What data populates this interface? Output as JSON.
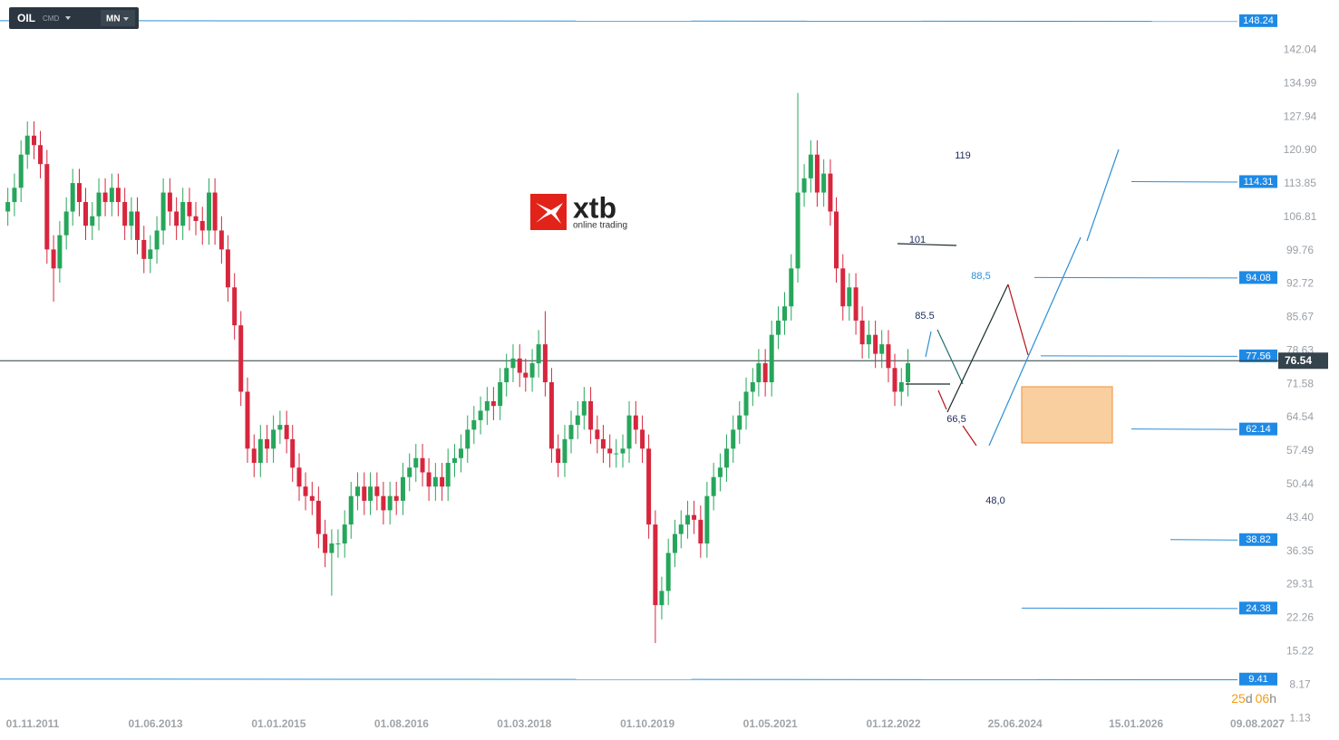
{
  "chart_data": {
    "type": "candlestick",
    "symbol": "OIL",
    "kind": "CMD",
    "interval": "MN",
    "logo": "xtb",
    "logo_sub": "online trading",
    "up_color": "#26a65b",
    "down_color": "#d7263d",
    "level_color": "#2b8fd6",
    "ylim": [
      0,
      152.6
    ],
    "yticks": [
      142.04,
      134.99,
      127.94,
      {
        "value": 120.9,
        "label": "120.90"
      },
      113.85,
      106.81,
      99.76,
      92.72,
      85.67,
      78.63,
      71.58,
      64.54,
      57.49,
      50.44,
      {
        "value": 43.4,
        "label": "43.40"
      },
      36.35,
      29.31,
      22.26,
      15.22,
      8.17,
      1.13
    ],
    "xticks": [
      "01.11.2011",
      "01.06.2013",
      "01.01.2015",
      "01.08.2016",
      "01.03.2018",
      "01.10.2019",
      "01.05.2021",
      "01.12.2022",
      "25.06.2024",
      "15.01.2026",
      "09.08.2027"
    ],
    "levels": [
      148.24,
      114.31,
      94.08,
      77.56,
      62.14,
      38.82,
      24.38,
      9.41
    ],
    "current_price": 76.54,
    "annotations": [
      "119",
      "101",
      "88,5",
      "85.5",
      "66,5",
      "48,0"
    ],
    "countdown": [
      "25",
      "d",
      "06",
      "h"
    ],
    "x": [
      "2011-07",
      "2011-08",
      "2011-09",
      "2011-10",
      "2011-11",
      "2011-12",
      "2012-01",
      "2012-02",
      "2012-03",
      "2012-04",
      "2012-05",
      "2012-06",
      "2012-07",
      "2012-08",
      "2012-09",
      "2012-10",
      "2012-11",
      "2012-12",
      "2013-01",
      "2013-02",
      "2013-03",
      "2013-04",
      "2013-05",
      "2013-06",
      "2013-07",
      "2013-08",
      "2013-09",
      "2013-10",
      "2013-11",
      "2013-12",
      "2014-01",
      "2014-02",
      "2014-03",
      "2014-04",
      "2014-05",
      "2014-06",
      "2014-07",
      "2014-08",
      "2014-09",
      "2014-10",
      "2014-11",
      "2014-12",
      "2015-01",
      "2015-02",
      "2015-03",
      "2015-04",
      "2015-05",
      "2015-06",
      "2015-07",
      "2015-08",
      "2015-09",
      "2015-10",
      "2015-11",
      "2015-12",
      "2016-01",
      "2016-02",
      "2016-03",
      "2016-04",
      "2016-05",
      "2016-06",
      "2016-07",
      "2016-08",
      "2016-09",
      "2016-10",
      "2016-11",
      "2016-12",
      "2017-01",
      "2017-02",
      "2017-03",
      "2017-04",
      "2017-05",
      "2017-06",
      "2017-07",
      "2017-08",
      "2017-09",
      "2017-10",
      "2017-11",
      "2017-12",
      "2018-01",
      "2018-02",
      "2018-03",
      "2018-04",
      "2018-05",
      "2018-06",
      "2018-07",
      "2018-08",
      "2018-09",
      "2018-10",
      "2018-11",
      "2018-12",
      "2019-01",
      "2019-02",
      "2019-03",
      "2019-04",
      "2019-05",
      "2019-06",
      "2019-07",
      "2019-08",
      "2019-09",
      "2019-10",
      "2019-11",
      "2019-12",
      "2020-01",
      "2020-02",
      "2020-03",
      "2020-04",
      "2020-05",
      "2020-06",
      "2020-07",
      "2020-08",
      "2020-09",
      "2020-10",
      "2020-11",
      "2020-12",
      "2021-01",
      "2021-02",
      "2021-03",
      "2021-04",
      "2021-05",
      "2021-06",
      "2021-07",
      "2021-08",
      "2021-09",
      "2021-10",
      "2021-11",
      "2021-12",
      "2022-01",
      "2022-02",
      "2022-03",
      "2022-04",
      "2022-05",
      "2022-06",
      "2022-07",
      "2022-08",
      "2022-09",
      "2022-10",
      "2022-11",
      "2022-12",
      "2023-01",
      "2023-02"
    ],
    "open": [
      108,
      110,
      113,
      120,
      124,
      122,
      118,
      100,
      96,
      103,
      108,
      114,
      110,
      105,
      107,
      112,
      110,
      113,
      110,
      105,
      108,
      102,
      98,
      100,
      104,
      112,
      108,
      105,
      110,
      107,
      106,
      104,
      112,
      104,
      100,
      92,
      84,
      70,
      58,
      55,
      60,
      58,
      62,
      63,
      60,
      54,
      50,
      48,
      47,
      40,
      36,
      38,
      38,
      42,
      48,
      50,
      47,
      50,
      48,
      45,
      48,
      47,
      52,
      54,
      56,
      53,
      50,
      52,
      50,
      55,
      56,
      58,
      62,
      64,
      66,
      68,
      67,
      72,
      75,
      77,
      74,
      73,
      76,
      80,
      72,
      58,
      55,
      60,
      63,
      65,
      68,
      62,
      60,
      58,
      57,
      57,
      58,
      65,
      62,
      58,
      42,
      25,
      28,
      36,
      40,
      42,
      44,
      43,
      38,
      48,
      52,
      54,
      58,
      62,
      65,
      70,
      72,
      76,
      72,
      82,
      85,
      88,
      96,
      112,
      115,
      120,
      112,
      116,
      108,
      96,
      88,
      92,
      85,
      80,
      82,
      78,
      80,
      75,
      70,
      72
    ],
    "high": [
      113,
      116,
      123,
      127,
      127,
      125,
      121,
      103,
      106,
      111,
      117,
      117,
      113,
      110,
      115,
      115,
      116,
      116,
      113,
      111,
      111,
      105,
      103,
      107,
      115,
      115,
      111,
      113,
      113,
      110,
      109,
      115,
      115,
      107,
      103,
      95,
      87,
      73,
      61,
      63,
      63,
      65,
      66,
      66,
      63,
      57,
      53,
      51,
      50,
      43,
      41,
      41,
      45,
      51,
      53,
      53,
      53,
      53,
      51,
      51,
      51,
      55,
      57,
      59,
      59,
      56,
      55,
      55,
      58,
      59,
      61,
      65,
      67,
      69,
      71,
      71,
      75,
      78,
      80,
      80,
      77,
      79,
      83,
      87,
      75,
      61,
      63,
      66,
      68,
      71,
      71,
      65,
      63,
      61,
      60,
      61,
      68,
      68,
      65,
      61,
      45,
      31,
      39,
      43,
      45,
      47,
      47,
      46,
      51,
      55,
      57,
      61,
      65,
      68,
      73,
      75,
      79,
      79,
      85,
      88,
      91,
      99,
      133,
      118,
      123,
      123,
      119,
      119,
      111,
      99,
      95,
      95,
      88,
      85,
      85,
      83,
      83,
      78,
      75,
      79
    ],
    "low": [
      105,
      107,
      110,
      117,
      119,
      115,
      97,
      89,
      93,
      100,
      105,
      107,
      102,
      102,
      104,
      107,
      107,
      107,
      102,
      102,
      99,
      95,
      95,
      97,
      101,
      105,
      102,
      102,
      104,
      103,
      101,
      101,
      101,
      97,
      89,
      81,
      67,
      55,
      52,
      52,
      55,
      55,
      59,
      57,
      51,
      47,
      45,
      44,
      37,
      33,
      27,
      35,
      35,
      39,
      45,
      44,
      44,
      45,
      42,
      42,
      44,
      44,
      49,
      51,
      50,
      47,
      47,
      47,
      47,
      52,
      53,
      55,
      59,
      61,
      63,
      64,
      64,
      69,
      72,
      71,
      70,
      70,
      73,
      69,
      55,
      52,
      52,
      57,
      60,
      62,
      59,
      57,
      55,
      54,
      54,
      54,
      55,
      59,
      55,
      39,
      17,
      22,
      25,
      33,
      37,
      39,
      40,
      35,
      35,
      45,
      49,
      51,
      55,
      59,
      62,
      67,
      69,
      69,
      69,
      79,
      82,
      85,
      93,
      109,
      112,
      109,
      109,
      105,
      93,
      85,
      85,
      82,
      77,
      77,
      75,
      75,
      72,
      67,
      67,
      69
    ],
    "close": [
      110,
      113,
      120,
      124,
      122,
      118,
      100,
      96,
      103,
      108,
      114,
      110,
      105,
      107,
      112,
      110,
      113,
      110,
      105,
      108,
      102,
      98,
      100,
      104,
      112,
      108,
      105,
      110,
      107,
      106,
      104,
      112,
      104,
      100,
      92,
      84,
      70,
      58,
      55,
      60,
      58,
      62,
      63,
      60,
      54,
      50,
      48,
      47,
      40,
      36,
      38,
      38,
      42,
      48,
      50,
      47,
      50,
      48,
      45,
      48,
      47,
      52,
      54,
      56,
      53,
      50,
      52,
      50,
      55,
      56,
      58,
      62,
      64,
      66,
      68,
      67,
      72,
      75,
      77,
      74,
      73,
      76,
      80,
      72,
      58,
      55,
      60,
      63,
      65,
      68,
      62,
      60,
      58,
      57,
      57,
      58,
      65,
      62,
      58,
      42,
      25,
      28,
      36,
      40,
      42,
      44,
      43,
      38,
      48,
      52,
      54,
      58,
      62,
      65,
      70,
      72,
      76,
      72,
      82,
      85,
      88,
      96,
      112,
      115,
      120,
      112,
      116,
      108,
      96,
      88,
      92,
      85,
      80,
      82,
      78,
      80,
      75,
      70,
      72,
      76
    ]
  }
}
